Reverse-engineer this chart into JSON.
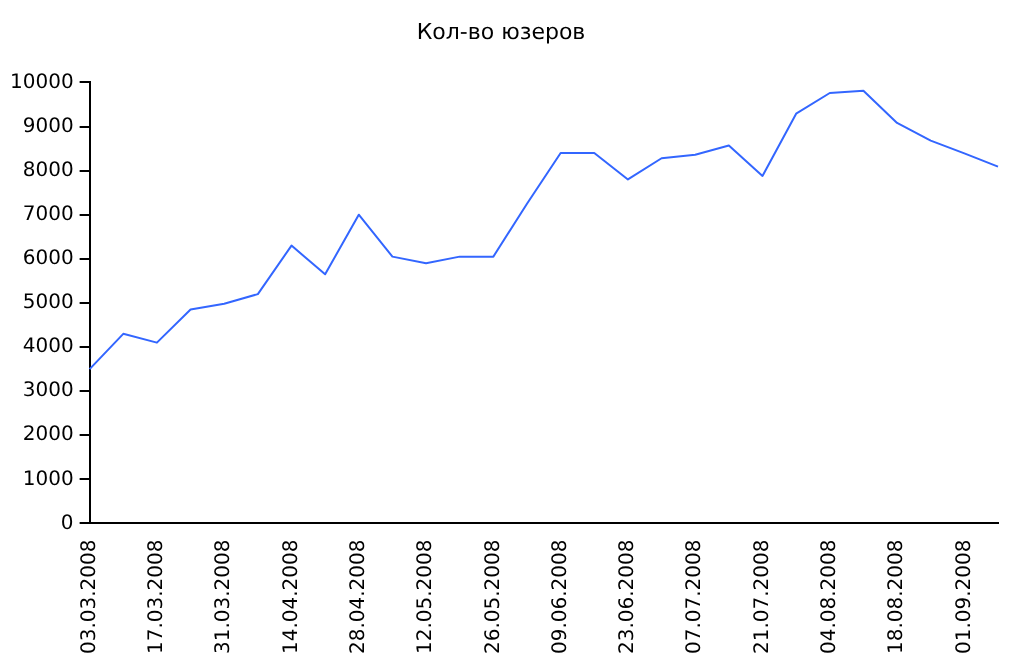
{
  "chart_data": {
    "type": "line",
    "title": "Кол-во юзеров",
    "categories": [
      "03.03.2008",
      null,
      "17.03.2008",
      null,
      "31.03.2008",
      null,
      "14.04.2008",
      null,
      "28.04.2008",
      null,
      "12.05.2008",
      null,
      "26.05.2008",
      null,
      "09.06.2008",
      null,
      "23.06.2008",
      null,
      "07.07.2008",
      null,
      "21.07.2008",
      null,
      "04.08.2008",
      null,
      "18.08.2008",
      null,
      "01.09.2008",
      null
    ],
    "series": [
      {
        "color": "#3366ff",
        "values": [
          3500,
          4300,
          4100,
          4850,
          4980,
          5200,
          6300,
          5650,
          7000,
          6050,
          5900,
          6050,
          6050,
          7250,
          8400,
          8400,
          7800,
          8280,
          8360,
          8570,
          7880,
          9290,
          9760,
          9810,
          9080,
          8680,
          8390,
          8090
        ]
      }
    ],
    "ylim": [
      0,
      10000
    ],
    "yticks": [
      0,
      1000,
      2000,
      3000,
      4000,
      5000,
      6000,
      7000,
      8000,
      9000,
      10000
    ],
    "grid": false,
    "legend": false,
    "marker": "none",
    "line_style": "solid"
  }
}
